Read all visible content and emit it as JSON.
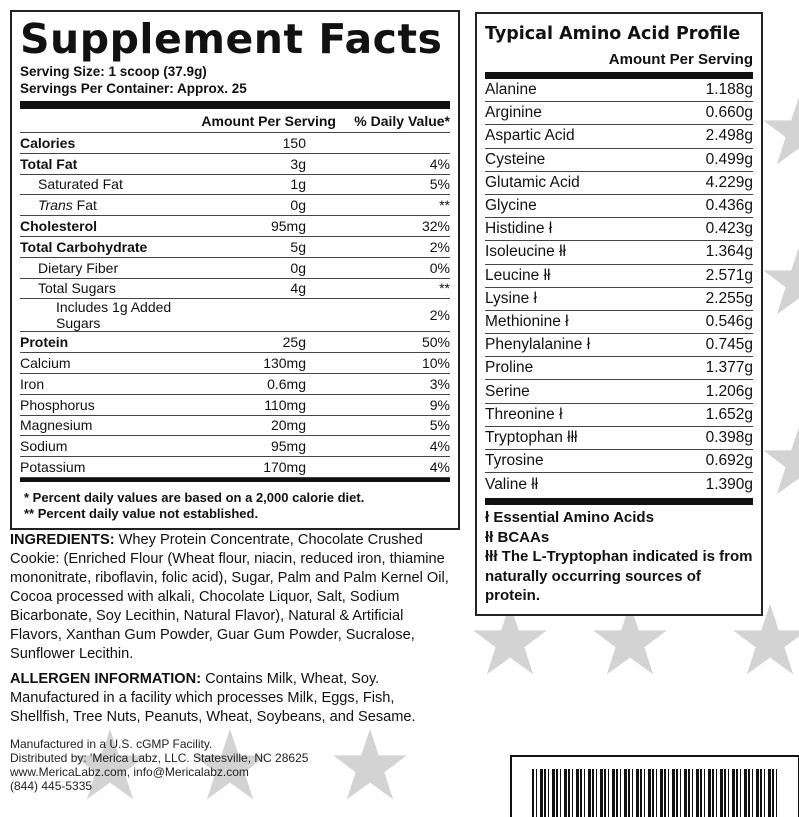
{
  "supplement_facts": {
    "title": "Supplement Facts",
    "serving_size": "Serving Size: 1 scoop (37.9g)",
    "servings_per_container": "Servings Per Container: Approx. 25",
    "col_amount": "Amount Per Serving",
    "col_dv": "% Daily Value*",
    "rows": [
      {
        "name": "Calories",
        "amount": "150",
        "dv": ""
      },
      {
        "name": "Total Fat",
        "amount": "3g",
        "dv": "4%"
      },
      {
        "name": "Saturated Fat",
        "amount": "1g",
        "dv": "5%"
      },
      {
        "name_italic": "Trans",
        "name": " Fat",
        "amount": "0g",
        "dv": "**"
      },
      {
        "name": "Cholesterol",
        "amount": "95mg",
        "dv": "32%"
      },
      {
        "name": "Total Carbohydrate",
        "amount": "5g",
        "dv": "2%"
      },
      {
        "name": "Dietary Fiber",
        "amount": "0g",
        "dv": "0%"
      },
      {
        "name": "Total Sugars",
        "amount": "4g",
        "dv": "**"
      },
      {
        "name": "Includes 1g Added Sugars",
        "amount": "",
        "dv": "2%"
      },
      {
        "name": "Protein",
        "amount": "25g",
        "dv": "50%"
      },
      {
        "name": "Calcium",
        "amount": "130mg",
        "dv": "10%"
      },
      {
        "name": "Iron",
        "amount": "0.6mg",
        "dv": "3%"
      },
      {
        "name": "Phosphorus",
        "amount": "110mg",
        "dv": "9%"
      },
      {
        "name": "Magnesium",
        "amount": "20mg",
        "dv": "5%"
      },
      {
        "name": "Sodium",
        "amount": "95mg",
        "dv": "4%"
      },
      {
        "name": "Potassium",
        "amount": "170mg",
        "dv": "4%"
      }
    ],
    "footnote1": "* Percent daily values are based on a 2,000 calorie diet.",
    "footnote2": "** Percent daily value not established."
  },
  "ingredients": {
    "label": "INGREDIENTS:",
    "text": " Whey Protein Concentrate, Chocolate Crushed Cookie: (Enriched Flour (Wheat flour, niacin, reduced iron, thiamine mononitrate, riboflavin, folic acid), Sugar, Palm and Palm Kernel Oil, Cocoa processed with alkali, Chocolate Liquor, Salt, Sodium Bicarbonate, Soy Lecithin, Natural Flavor), Natural & Artificial Flavors, Xanthan Gum Powder, Guar Gum Powder, Sucralose, Sunflower Lecithin."
  },
  "allergen": {
    "label": "ALLERGEN INFORMATION:",
    "text": " Contains Milk, Wheat, Soy. Manufactured in a facility which processes Milk, Eggs, Fish, Shellfish, Tree Nuts, Peanuts, Wheat, Soybeans, and Sesame."
  },
  "manufacturer": [
    "Manufactured in a U.S. cGMP Facility.",
    "Distributed by: 'Merica Labz, LLC. Statesville, NC 28625",
    "www.MericaLabz.com, info@Mericalabz.com",
    "(844) 445-5335"
  ],
  "amino": {
    "title": "Typical Amino Acid Profile",
    "subtitle": "Amount Per Serving",
    "rows": [
      {
        "name": "Alanine",
        "amount": "1.188g"
      },
      {
        "name": "Arginine",
        "amount": "0.660g"
      },
      {
        "name": "Aspartic Acid",
        "amount": "2.498g"
      },
      {
        "name": "Cysteine",
        "amount": "0.499g"
      },
      {
        "name": "Glutamic Acid",
        "amount": "4.229g"
      },
      {
        "name": "Glycine",
        "amount": "0.436g"
      },
      {
        "name": "Histidine ł",
        "amount": "0.423g"
      },
      {
        "name": "Isoleucine łł",
        "amount": "1.364g"
      },
      {
        "name": "Leucine łł",
        "amount": "2.571g"
      },
      {
        "name": "Lysine ł",
        "amount": "2.255g"
      },
      {
        "name": "Methionine ł",
        "amount": "0.546g"
      },
      {
        "name": "Phenylalanine ł",
        "amount": "0.745g"
      },
      {
        "name": "Proline",
        "amount": "1.377g"
      },
      {
        "name": "Serine",
        "amount": "1.206g"
      },
      {
        "name": "Threonine ł",
        "amount": "1.652g"
      },
      {
        "name": "Tryptophan łłł",
        "amount": "0.398g"
      },
      {
        "name": "Tyrosine",
        "amount": "0.692g"
      },
      {
        "name": "Valine łł",
        "amount": "1.390g"
      }
    ],
    "footnotes": [
      "ł Essential Amino Acids",
      "łł BCAAs",
      "łłł The L-Tryptophan indicated is from naturally occurring sources of protein."
    ]
  }
}
